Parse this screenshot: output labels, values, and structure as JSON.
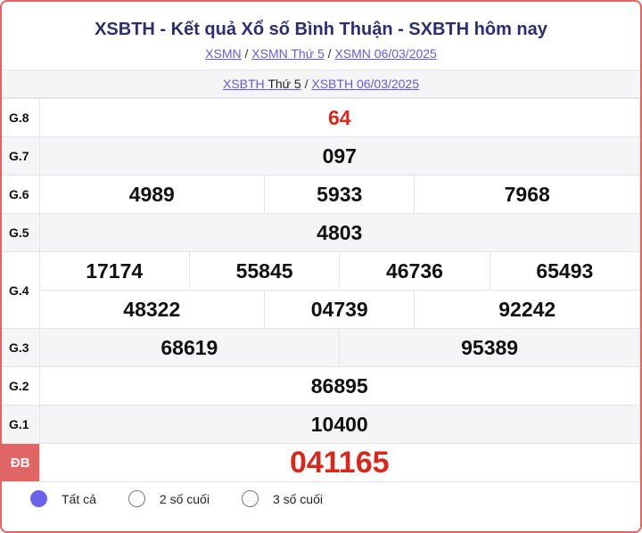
{
  "header": {
    "title": "XSBTH - Kết quả Xổ số Bình Thuận - SXBTH hôm nay",
    "crumbs": [
      "XSMN",
      "XSMN Thứ 5",
      "XSMN 06/03/2025"
    ],
    "sub_link1": "XSBTH",
    "sub_text1": "Thứ 5",
    "sub_link2": "XSBTH 06/03/2025"
  },
  "results": {
    "g8": {
      "label": "G.8",
      "values": [
        "64"
      ]
    },
    "g7": {
      "label": "G.7",
      "values": [
        "097"
      ]
    },
    "g6": {
      "label": "G.6",
      "values": [
        "4989",
        "5933",
        "7968"
      ]
    },
    "g5": {
      "label": "G.5",
      "values": [
        "4803"
      ]
    },
    "g4": {
      "label": "G.4",
      "values": [
        "17174",
        "55845",
        "46736",
        "65493",
        "48322",
        "04739",
        "92242"
      ]
    },
    "g3": {
      "label": "G.3",
      "values": [
        "68619",
        "95389"
      ]
    },
    "g2": {
      "label": "G.2",
      "values": [
        "86895"
      ]
    },
    "g1": {
      "label": "G.1",
      "values": [
        "10400"
      ]
    },
    "db": {
      "label": "ĐB",
      "values": [
        "041165"
      ]
    }
  },
  "options": {
    "selected": 0,
    "items": [
      "Tất cả",
      "2 số cuối",
      "3 số cuối"
    ]
  },
  "colors": {
    "accent": "#e06666",
    "prize_red": "#d42a1e",
    "radio": "#6c63e8",
    "title": "#2c2f6e"
  }
}
